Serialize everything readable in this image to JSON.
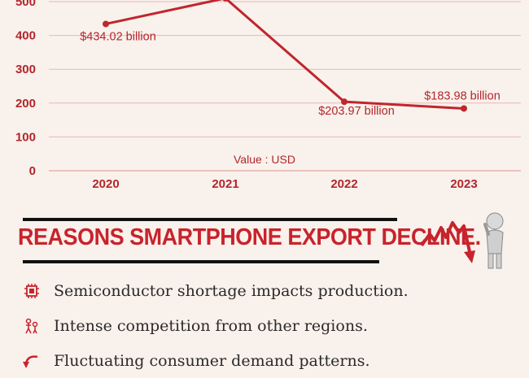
{
  "chart_data": {
    "type": "line",
    "x": [
      "2020",
      "2021",
      "2022",
      "2023"
    ],
    "values": [
      434.02,
      510,
      203.97,
      183.98
    ],
    "data_labels": [
      "$434.02 billion",
      "",
      "$203.97 billion",
      "$183.98 billion"
    ],
    "yticks": [
      0,
      100,
      200,
      300,
      400,
      500
    ],
    "ylim": [
      0,
      500
    ],
    "unit_label": "Value : USD",
    "line_color": "#c0262d",
    "grid": true
  },
  "heading": "REASONS SMARTPHONE EXPORT DECLINE.",
  "reasons": [
    {
      "icon": "chip-icon",
      "text": "Semiconductor shortage impacts production."
    },
    {
      "icon": "competition-icon",
      "text": "Intense competition from other regions."
    },
    {
      "icon": "arrow-icon",
      "text": "Fluctuating consumer demand patterns."
    }
  ],
  "colors": {
    "accent": "#c8232c",
    "background": "#f9f1ec",
    "grid": "#e8b9b5"
  }
}
